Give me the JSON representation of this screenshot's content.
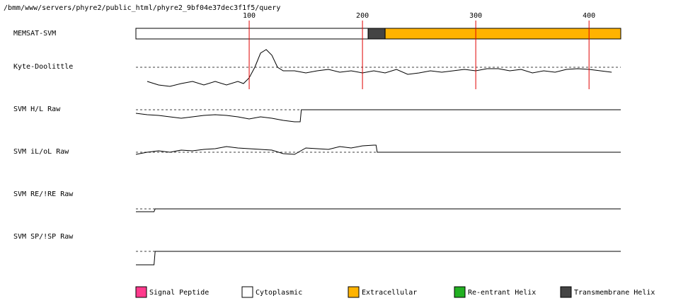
{
  "path": "/bmm/www/servers/phyre2/public_html/phyre2_9bf04e37dec3f1f5/query",
  "chart_data": {
    "type": "memsat",
    "xlim": [
      0,
      428
    ],
    "xticks": [
      100,
      200,
      300,
      400
    ],
    "tick_color": "#e00000",
    "ylim": [
      -30,
      30
    ],
    "bar_name": "MEMSAT-SVM",
    "segments": [
      {
        "start": 1,
        "end": 205,
        "color": "#ffffff"
      },
      {
        "start": 205,
        "end": 220,
        "color": "#444444"
      },
      {
        "start": 220,
        "end": 428,
        "color": "#ffb300"
      }
    ],
    "tracks": [
      {
        "name": "Kyte-Doolittle",
        "x": [
          10,
          20,
          30,
          40,
          50,
          60,
          70,
          80,
          90,
          95,
          100,
          105,
          110,
          115,
          120,
          125,
          130,
          140,
          150,
          160,
          170,
          180,
          190,
          200,
          210,
          220,
          230,
          240,
          250,
          260,
          270,
          280,
          290,
          300,
          310,
          320,
          330,
          340,
          350,
          360,
          370,
          380,
          390,
          400,
          410,
          420
        ],
        "values": [
          -20,
          -25,
          -27,
          -23,
          -20,
          -25,
          -20,
          -25,
          -20,
          -23,
          -15,
          0,
          20,
          25,
          17,
          0,
          -5,
          -5,
          -8,
          -5,
          -3,
          -7,
          -5,
          -8,
          -5,
          -8,
          -3,
          -10,
          -8,
          -5,
          -7,
          -5,
          -3,
          -5,
          -2,
          -2,
          -5,
          -3,
          -8,
          -5,
          -7,
          -3,
          -2,
          -3,
          -5,
          -7
        ]
      },
      {
        "name": "SVM H/L Raw",
        "x": [
          0,
          10,
          20,
          30,
          40,
          50,
          60,
          70,
          80,
          90,
          100,
          110,
          120,
          130,
          140,
          145,
          146,
          428
        ],
        "values": [
          -5,
          -7,
          -8,
          -10,
          -12,
          -10,
          -8,
          -7,
          -8,
          -10,
          -13,
          -10,
          -12,
          -15,
          -17,
          -17,
          0,
          0
        ]
      },
      {
        "name": "SVM iL/oL Raw",
        "x": [
          0,
          10,
          20,
          30,
          40,
          50,
          60,
          70,
          80,
          90,
          100,
          110,
          120,
          130,
          140,
          150,
          160,
          170,
          180,
          190,
          200,
          210,
          212,
          213,
          428
        ],
        "values": [
          -3,
          0,
          2,
          0,
          3,
          2,
          4,
          5,
          8,
          6,
          5,
          4,
          3,
          -2,
          -3,
          6,
          5,
          4,
          8,
          6,
          9,
          10,
          10,
          0,
          0
        ]
      },
      {
        "name": "SVM RE/!RE Raw",
        "x": [
          0,
          16,
          17,
          428
        ],
        "values": [
          -4,
          -4,
          0,
          0
        ]
      },
      {
        "name": "SVM SP/!SP Raw",
        "x": [
          0,
          16,
          17,
          428
        ],
        "values": [
          -19,
          -19,
          0,
          0
        ]
      }
    ],
    "legend": [
      {
        "name": "Signal Peptide",
        "color": "#ff3a8c"
      },
      {
        "name": "Cytoplasmic",
        "color": "#ffffff"
      },
      {
        "name": "Extracellular",
        "color": "#ffb300"
      },
      {
        "name": "Re-entrant Helix",
        "color": "#22b022"
      },
      {
        "name": "Transmembrane Helix",
        "color": "#444444"
      }
    ]
  }
}
